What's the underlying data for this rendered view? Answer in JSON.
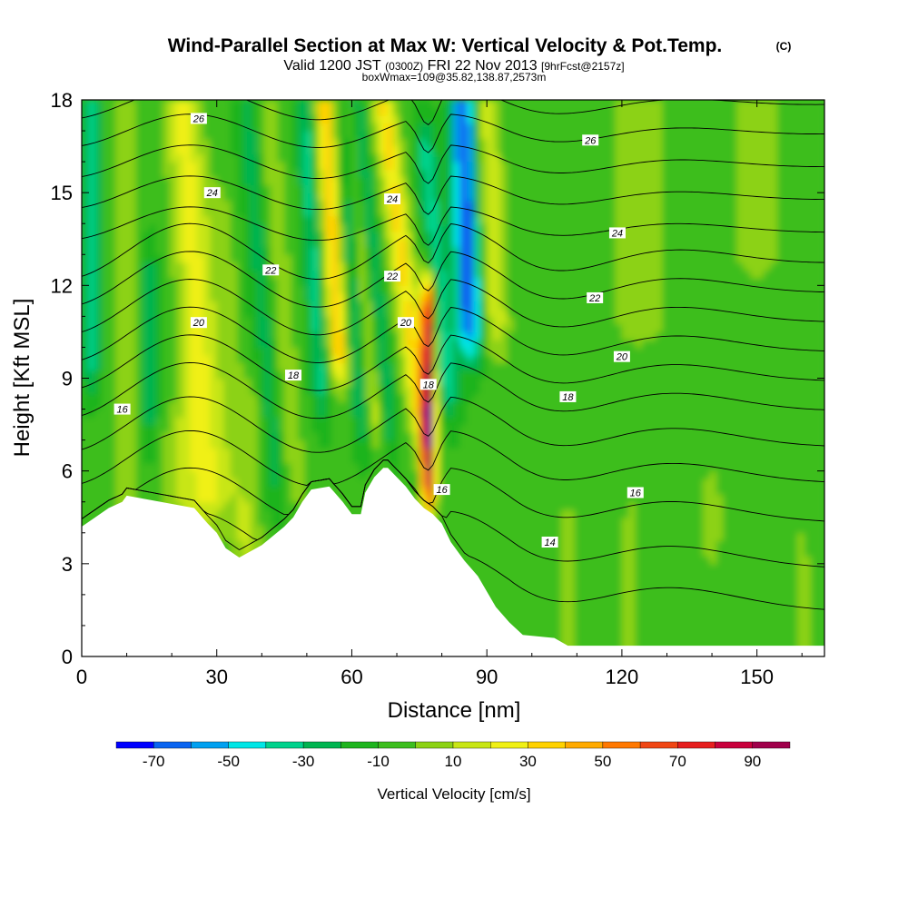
{
  "chart_data": {
    "type": "heatmap",
    "title": "Wind-Parallel Section at Max W: Vertical Velocity & Pot.Temp.",
    "title_mark": "(C)",
    "subtitle_parts": [
      "Valid 1200 JST",
      "(0300Z)",
      "FRI 22 Nov 2013",
      "[9hrFcst@2157z]"
    ],
    "subtitle2": "boxWmax=109@35.82,138.87,2573m",
    "xlabel": "Distance [nm]",
    "ylabel": "Height [Kft MSL]",
    "xlim": [
      0,
      165
    ],
    "ylim": [
      0,
      18
    ],
    "x_ticks": [
      0,
      30,
      60,
      90,
      120,
      150
    ],
    "y_ticks": [
      0,
      3,
      6,
      9,
      12,
      15,
      18
    ],
    "colorbar": {
      "label": "Vertical Velocity [cm/s]",
      "ticks": [
        -70,
        -50,
        -30,
        -10,
        10,
        30,
        50,
        70,
        90
      ],
      "bounds": [
        -80,
        -70,
        -60,
        -50,
        -40,
        -30,
        -20,
        -10,
        0,
        10,
        20,
        30,
        40,
        50,
        60,
        70,
        80,
        90,
        100
      ],
      "colors": [
        "#0000ff",
        "#0a64f0",
        "#00a0f0",
        "#00e6e6",
        "#00d28c",
        "#00b450",
        "#1eb41e",
        "#3cbe1e",
        "#8cd214",
        "#c8e614",
        "#f0f014",
        "#ffd200",
        "#ffaa00",
        "#ff7800",
        "#f04614",
        "#e61e1e",
        "#c8003c",
        "#a0004b",
        "#6e0096"
      ]
    },
    "terrain_profile": {
      "x": [
        0,
        3,
        6,
        9,
        10,
        25,
        28,
        30,
        32,
        35,
        40,
        45,
        47,
        49,
        51,
        55,
        58,
        60,
        62,
        63,
        65,
        67,
        68,
        72,
        74,
        76,
        78,
        80,
        82,
        85,
        88,
        90,
        92,
        95,
        98,
        105,
        108,
        165
      ],
      "y": [
        4.2,
        4.5,
        4.8,
        5.0,
        5.2,
        4.8,
        4.3,
        4.0,
        3.5,
        3.2,
        3.6,
        4.2,
        4.5,
        5.0,
        5.4,
        5.5,
        5.0,
        4.6,
        4.6,
        5.3,
        5.8,
        6.1,
        6.1,
        5.5,
        5.1,
        4.8,
        4.6,
        4.3,
        3.7,
        3.1,
        2.6,
        2.1,
        1.6,
        1.1,
        0.7,
        0.6,
        0.35,
        0.35
      ]
    },
    "isentropes": [
      {
        "label": "14",
        "label_x": 104,
        "label_y": 3.7
      },
      {
        "label": "16",
        "label_x": 9,
        "label_y": 8.0
      },
      {
        "label": "16",
        "label_x": 80,
        "label_y": 5.4
      },
      {
        "label": "16",
        "label_x": 123,
        "label_y": 5.3
      },
      {
        "label": "18",
        "label_x": 47,
        "label_y": 9.1
      },
      {
        "label": "18",
        "label_x": 77,
        "label_y": 8.8
      },
      {
        "label": "18",
        "label_x": 108,
        "label_y": 8.4
      },
      {
        "label": "20",
        "label_x": 26,
        "label_y": 10.8
      },
      {
        "label": "20",
        "label_x": 72,
        "label_y": 10.8
      },
      {
        "label": "20",
        "label_x": 120,
        "label_y": 9.7
      },
      {
        "label": "22",
        "label_x": 42,
        "label_y": 12.5
      },
      {
        "label": "22",
        "label_x": 69,
        "label_y": 12.3
      },
      {
        "label": "22",
        "label_x": 114,
        "label_y": 11.6
      },
      {
        "label": "24",
        "label_x": 29,
        "label_y": 15.0
      },
      {
        "label": "24",
        "label_x": 69,
        "label_y": 14.8
      },
      {
        "label": "24",
        "label_x": 119,
        "label_y": 13.7
      },
      {
        "label": "26",
        "label_x": 26,
        "label_y": 17.4
      },
      {
        "label": "26",
        "label_x": 113,
        "label_y": 16.7
      }
    ]
  }
}
